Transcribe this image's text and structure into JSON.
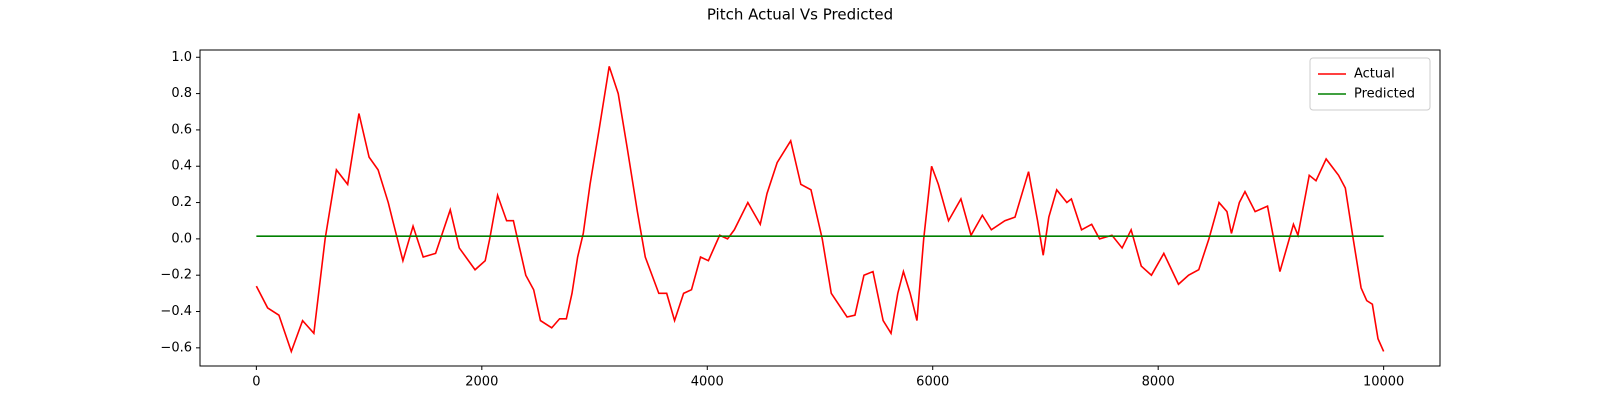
{
  "chart_data": {
    "type": "line",
    "title": "Pitch Actual Vs Predicted",
    "xlim": [
      -500,
      10500
    ],
    "ylim": [
      -0.7,
      1.04
    ],
    "xticks": [
      0,
      2000,
      4000,
      6000,
      8000,
      10000
    ],
    "yticks": [
      {
        "value": -0.6,
        "label": "−0.6"
      },
      {
        "value": -0.4,
        "label": "−0.4"
      },
      {
        "value": -0.2,
        "label": "−0.2"
      },
      {
        "value": 0,
        "label": "0.0"
      },
      0.2,
      0.4,
      0.6,
      0.8,
      {
        "value": 1,
        "label": "1.0"
      }
    ],
    "legend": "upper right",
    "grid": false,
    "series": [
      {
        "name": "Actual",
        "color": "#ff0000",
        "x": [
          0,
          100,
          200,
          310,
          410,
          510,
          610,
          710,
          810,
          910,
          1000,
          1080,
          1170,
          1210,
          1300,
          1390,
          1480,
          1590,
          1720,
          1800,
          1940,
          2030,
          2070,
          2140,
          2220,
          2280,
          2390,
          2460,
          2520,
          2620,
          2690,
          2750,
          2800,
          2850,
          2900,
          2960,
          3040,
          3130,
          3210,
          3290,
          3380,
          3450,
          3570,
          3640,
          3710,
          3790,
          3860,
          3940,
          4010,
          4110,
          4180,
          4240,
          4360,
          4470,
          4530,
          4620,
          4740,
          4830,
          4920,
          5020,
          5100,
          5240,
          5310,
          5390,
          5470,
          5560,
          5630,
          5690,
          5740,
          5800,
          5860,
          5920,
          5990,
          6050,
          6140,
          6250,
          6340,
          6440,
          6520,
          6640,
          6730,
          6850,
          6930,
          6980,
          7030,
          7100,
          7190,
          7230,
          7320,
          7410,
          7480,
          7590,
          7680,
          7760,
          7850,
          7940,
          8050,
          8180,
          8270,
          8360,
          8450,
          8540,
          8610,
          8650,
          8720,
          8770,
          8860,
          8970,
          9080,
          9200,
          9240,
          9340,
          9400,
          9490,
          9600,
          9660,
          9730,
          9800,
          9850,
          9900,
          9950,
          10000
        ],
        "values": [
          -0.26,
          -0.38,
          -0.42,
          -0.62,
          -0.45,
          -0.52,
          0.0,
          0.38,
          0.3,
          0.69,
          0.45,
          0.38,
          0.2,
          0.1,
          -0.12,
          0.07,
          -0.1,
          -0.08,
          0.16,
          -0.05,
          -0.17,
          -0.12,
          0.0,
          0.24,
          0.1,
          0.1,
          -0.2,
          -0.28,
          -0.45,
          -0.49,
          -0.44,
          -0.44,
          -0.3,
          -0.1,
          0.03,
          0.3,
          0.6,
          0.95,
          0.8,
          0.5,
          0.15,
          -0.1,
          -0.3,
          -0.3,
          -0.45,
          -0.3,
          -0.28,
          -0.1,
          -0.12,
          0.02,
          0.0,
          0.05,
          0.2,
          0.08,
          0.25,
          0.42,
          0.54,
          0.3,
          0.27,
          0.0,
          -0.3,
          -0.43,
          -0.42,
          -0.2,
          -0.18,
          -0.45,
          -0.52,
          -0.3,
          -0.18,
          -0.3,
          -0.45,
          0.0,
          0.4,
          0.3,
          0.1,
          0.22,
          0.02,
          0.13,
          0.05,
          0.1,
          0.12,
          0.37,
          0.1,
          -0.09,
          0.12,
          0.27,
          0.2,
          0.22,
          0.05,
          0.08,
          0.0,
          0.02,
          -0.05,
          0.05,
          -0.15,
          -0.2,
          -0.08,
          -0.25,
          -0.2,
          -0.17,
          0.0,
          0.2,
          0.15,
          0.03,
          0.2,
          0.26,
          0.15,
          0.18,
          -0.18,
          0.08,
          0.02,
          0.35,
          0.32,
          0.44,
          0.35,
          0.28,
          0.0,
          -0.27,
          -0.34,
          -0.36,
          -0.55,
          -0.62
        ]
      },
      {
        "name": "Predicted",
        "color": "#008000",
        "x": [
          0,
          10000
        ],
        "values": [
          0.015,
          0.015
        ]
      }
    ]
  }
}
